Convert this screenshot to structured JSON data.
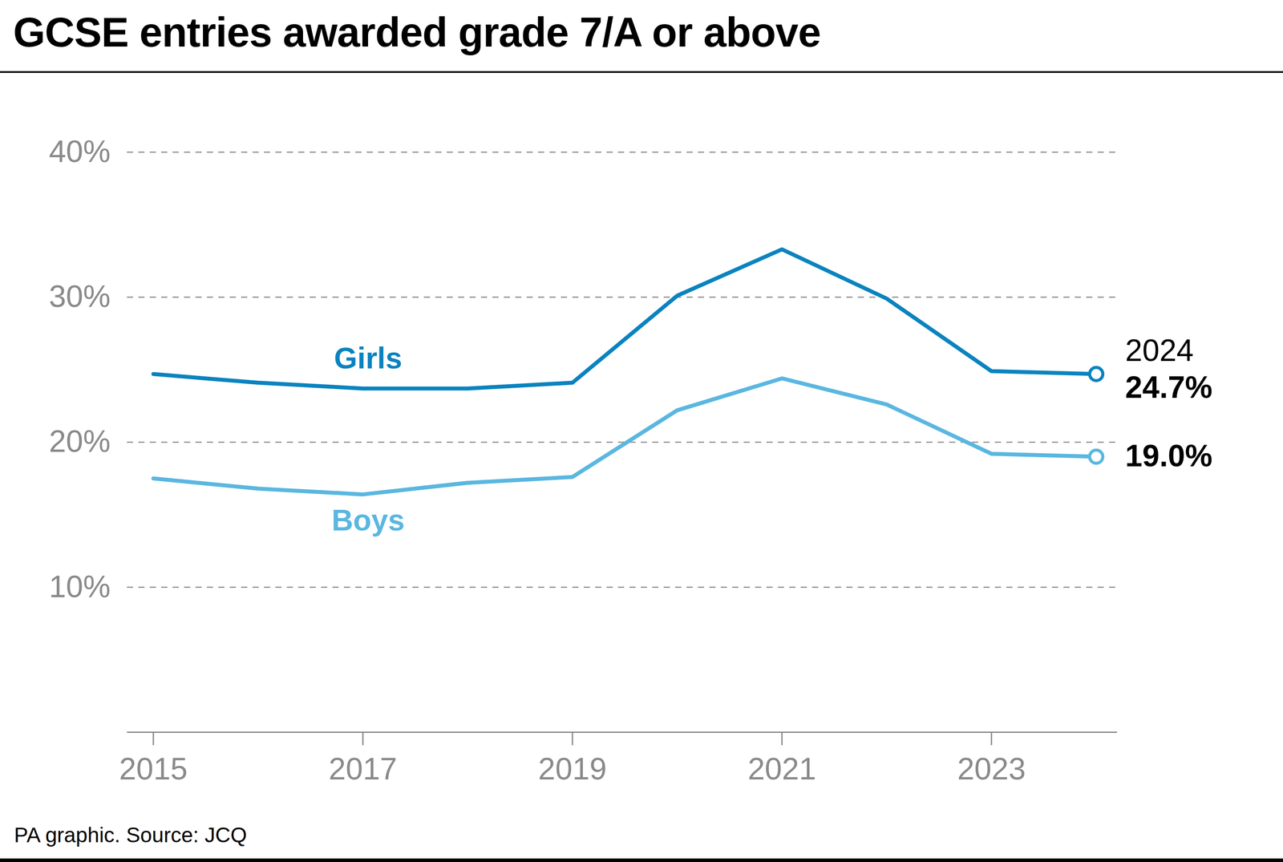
{
  "chart_data": {
    "type": "line",
    "title": "GCSE entries awarded grade 7/A or above",
    "caption": "PA graphic. Source: JCQ",
    "x": [
      2015,
      2016,
      2017,
      2018,
      2019,
      2020,
      2021,
      2022,
      2023,
      2024
    ],
    "xlim": [
      2014.75,
      2024.2
    ],
    "xticks": [
      2015,
      2017,
      2019,
      2021,
      2023
    ],
    "ylim": [
      0,
      40
    ],
    "yticks": [
      {
        "value": 10,
        "label": "10%"
      },
      {
        "value": 20,
        "label": "20%"
      },
      {
        "value": 30,
        "label": "30%"
      },
      {
        "value": 40,
        "label": "40%"
      }
    ],
    "grid": true,
    "series": [
      {
        "name": "Girls",
        "color": "#0a83bf",
        "values": [
          24.7,
          24.1,
          23.7,
          23.7,
          24.1,
          30.1,
          33.3,
          29.9,
          24.9,
          24.7
        ],
        "value_labels": [
          null,
          null,
          null,
          null,
          null,
          null,
          null,
          null,
          null,
          "24.7%"
        ]
      },
      {
        "name": "Boys",
        "color": "#5ab7e0",
        "values": [
          17.5,
          16.8,
          16.4,
          17.2,
          17.6,
          22.2,
          24.4,
          22.6,
          19.2,
          19.0
        ],
        "value_labels": [
          null,
          null,
          null,
          null,
          null,
          null,
          null,
          null,
          null,
          "19.0%"
        ]
      }
    ],
    "annotations": [
      {
        "text": "2024"
      }
    ]
  }
}
